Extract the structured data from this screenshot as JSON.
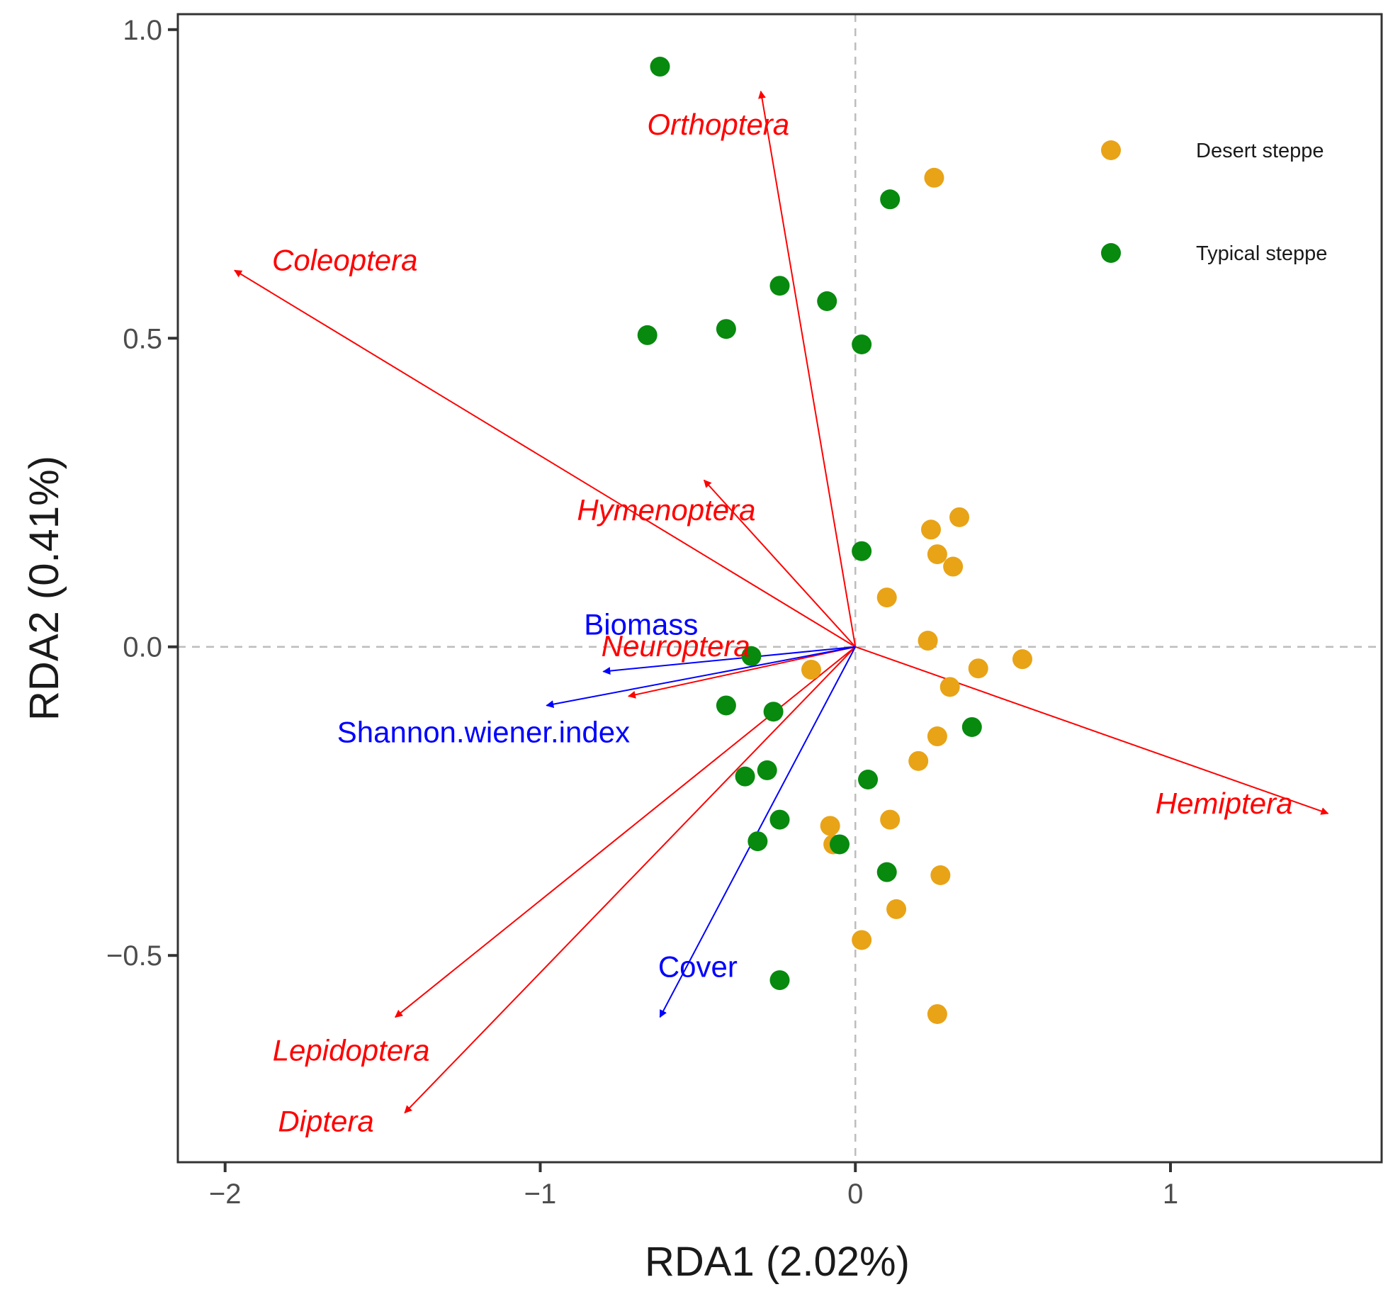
{
  "chart_data": {
    "type": "scatter",
    "xlabel": "RDA1 (2.02%)",
    "ylabel": "RDA2 (0.41%)",
    "xlim": [
      -2.15,
      1.67
    ],
    "ylim": [
      -0.835,
      1.025
    ],
    "x_ticks": [
      -2,
      -1,
      0,
      1
    ],
    "x_tick_labels": [
      "−2",
      "−1",
      "0",
      "1"
    ],
    "y_ticks": [
      -0.5,
      0.0,
      0.5,
      1.0
    ],
    "y_tick_labels": [
      "−0.5",
      "0.0",
      "0.5",
      "1.0"
    ],
    "reference_lines": {
      "x": 0,
      "y": 0,
      "style": "dashed",
      "color": "#bdbdbd"
    },
    "legend": {
      "placement": "top-right",
      "entries": [
        {
          "label": "Desert steppe",
          "color": "#E8A317"
        },
        {
          "label": "Typical steppe",
          "color": "#078A0E"
        }
      ]
    },
    "series": [
      {
        "name": "Desert steppe",
        "color": "#E8A317",
        "points": [
          [
            0.25,
            0.76
          ],
          [
            0.33,
            0.21
          ],
          [
            0.24,
            0.19
          ],
          [
            0.26,
            0.15
          ],
          [
            0.31,
            0.13
          ],
          [
            0.1,
            0.08
          ],
          [
            0.23,
            0.01
          ],
          [
            0.53,
            -0.02
          ],
          [
            0.39,
            -0.035
          ],
          [
            0.3,
            -0.065
          ],
          [
            -0.14,
            -0.037
          ],
          [
            0.26,
            -0.145
          ],
          [
            0.2,
            -0.185
          ],
          [
            0.11,
            -0.28
          ],
          [
            -0.08,
            -0.29
          ],
          [
            -0.07,
            -0.32
          ],
          [
            0.27,
            -0.37
          ],
          [
            0.13,
            -0.425
          ],
          [
            0.02,
            -0.475
          ],
          [
            0.26,
            -0.595
          ]
        ]
      },
      {
        "name": "Typical steppe",
        "color": "#078A0E",
        "points": [
          [
            -0.62,
            0.94
          ],
          [
            0.11,
            0.725
          ],
          [
            -0.24,
            0.585
          ],
          [
            -0.09,
            0.56
          ],
          [
            -0.66,
            0.505
          ],
          [
            -0.41,
            0.515
          ],
          [
            0.02,
            0.49
          ],
          [
            0.02,
            0.155
          ],
          [
            -0.33,
            -0.015
          ],
          [
            -0.41,
            -0.095
          ],
          [
            -0.26,
            -0.105
          ],
          [
            0.37,
            -0.13
          ],
          [
            -0.35,
            -0.21
          ],
          [
            -0.28,
            -0.2
          ],
          [
            0.04,
            -0.215
          ],
          [
            -0.24,
            -0.28
          ],
          [
            -0.31,
            -0.315
          ],
          [
            -0.05,
            -0.32
          ],
          [
            0.1,
            -0.365
          ],
          [
            -0.24,
            -0.54
          ]
        ]
      }
    ],
    "vectors": [
      {
        "label": "Orthoptera",
        "group": "taxa",
        "color": "#ff0000",
        "italic": true,
        "x": -0.3,
        "y": 0.9,
        "lx": -0.435,
        "ly": 0.83
      },
      {
        "label": "Coleoptera",
        "group": "taxa",
        "color": "#ff0000",
        "italic": true,
        "x": -1.97,
        "y": 0.61,
        "lx": -1.62,
        "ly": 0.61
      },
      {
        "label": "Hymenoptera",
        "group": "taxa",
        "color": "#ff0000",
        "italic": true,
        "x": -0.48,
        "y": 0.27,
        "lx": -0.6,
        "ly": 0.205
      },
      {
        "label": "Neuroptera",
        "group": "taxa",
        "color": "#ff0000",
        "italic": true,
        "x": -0.72,
        "y": -0.08,
        "lx": -0.57,
        "ly": -0.015
      },
      {
        "label": "Hemiptera",
        "group": "taxa",
        "color": "#ff0000",
        "italic": true,
        "x": 1.5,
        "y": -0.27,
        "lx": 1.17,
        "ly": -0.27
      },
      {
        "label": "Lepidoptera",
        "group": "taxa",
        "color": "#ff0000",
        "italic": true,
        "x": -1.46,
        "y": -0.6,
        "lx": -1.6,
        "ly": -0.67
      },
      {
        "label": "Diptera",
        "group": "taxa",
        "color": "#ff0000",
        "italic": true,
        "x": -1.43,
        "y": -0.755,
        "lx": -1.68,
        "ly": -0.785
      },
      {
        "label": "Biomass",
        "group": "env",
        "color": "#0000ff",
        "italic": false,
        "x": -0.8,
        "y": -0.04,
        "lx": -0.68,
        "ly": 0.02
      },
      {
        "label": "Shannon.wiener.index",
        "group": "env",
        "color": "#0000ff",
        "italic": false,
        "x": -0.98,
        "y": -0.095,
        "lx": -1.18,
        "ly": -0.155
      },
      {
        "label": "Cover",
        "group": "env",
        "color": "#0000ff",
        "italic": false,
        "x": -0.62,
        "y": -0.6,
        "lx": -0.5,
        "ly": -0.535
      }
    ]
  }
}
